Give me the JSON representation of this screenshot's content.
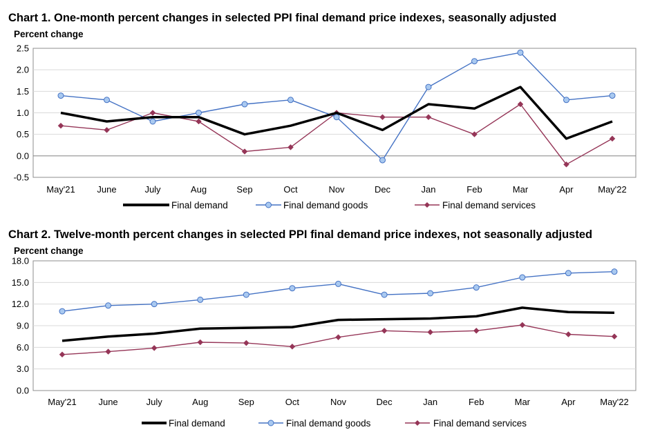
{
  "chart_data": [
    {
      "type": "line",
      "title": "Chart 1. One-month percent changes in selected PPI final demand price indexes, seasonally adjusted",
      "ylabel": "Percent change",
      "xlabel": "",
      "categories": [
        "May'21",
        "June",
        "July",
        "Aug",
        "Sep",
        "Oct",
        "Nov",
        "Dec",
        "Jan",
        "Feb",
        "Mar",
        "Apr",
        "May'22"
      ],
      "ylim": [
        -0.5,
        2.5
      ],
      "yticks": [
        -0.5,
        0.0,
        0.5,
        1.0,
        1.5,
        2.0,
        2.5
      ],
      "ytick_labels": [
        "-0.5",
        "0.0",
        "0.5",
        "1.0",
        "1.5",
        "2.0",
        "2.5"
      ],
      "grid": true,
      "legend_position": "bottom",
      "series": [
        {
          "name": "Final demand",
          "color": "#000000",
          "marker": "none",
          "values": [
            1.0,
            0.8,
            0.9,
            0.9,
            0.5,
            0.7,
            1.0,
            0.6,
            1.2,
            1.1,
            1.6,
            0.4,
            0.8
          ]
        },
        {
          "name": "Final demand goods",
          "color": "#4472c4",
          "marker": "circle",
          "values": [
            1.4,
            1.3,
            0.8,
            1.0,
            1.2,
            1.3,
            0.9,
            -0.1,
            1.6,
            2.2,
            2.4,
            1.3,
            1.4
          ]
        },
        {
          "name": "Final demand services",
          "color": "#953557",
          "marker": "diamond",
          "values": [
            0.7,
            0.6,
            1.0,
            0.8,
            0.1,
            0.2,
            1.0,
            0.9,
            0.9,
            0.5,
            1.2,
            -0.2,
            0.4
          ]
        }
      ]
    },
    {
      "type": "line",
      "title": "Chart 2. Twelve-month percent changes in selected PPI final demand price indexes, not seasonally adjusted",
      "ylabel": "Percent change",
      "xlabel": "",
      "categories": [
        "May'21",
        "June",
        "July",
        "Aug",
        "Sep",
        "Oct",
        "Nov",
        "Dec",
        "Jan",
        "Feb",
        "Mar",
        "Apr",
        "May'22"
      ],
      "ylim": [
        0.0,
        18.0
      ],
      "yticks": [
        0.0,
        3.0,
        6.0,
        9.0,
        12.0,
        15.0,
        18.0
      ],
      "ytick_labels": [
        "0.0",
        "3.0",
        "6.0",
        "9.0",
        "12.0",
        "15.0",
        "18.0"
      ],
      "grid": true,
      "legend_position": "bottom",
      "series": [
        {
          "name": "Final demand",
          "color": "#000000",
          "marker": "none",
          "values": [
            6.9,
            7.5,
            7.9,
            8.6,
            8.7,
            8.8,
            9.8,
            9.9,
            10.0,
            10.3,
            11.5,
            10.9,
            10.8
          ]
        },
        {
          "name": "Final demand goods",
          "color": "#4472c4",
          "marker": "circle",
          "values": [
            11.0,
            11.8,
            12.0,
            12.6,
            13.3,
            14.2,
            14.8,
            13.3,
            13.5,
            14.3,
            15.7,
            16.3,
            16.5
          ]
        },
        {
          "name": "Final demand services",
          "color": "#953557",
          "marker": "diamond",
          "values": [
            5.0,
            5.4,
            5.9,
            6.7,
            6.6,
            6.1,
            7.4,
            8.3,
            8.1,
            8.3,
            9.1,
            7.8,
            7.5
          ]
        }
      ]
    }
  ]
}
